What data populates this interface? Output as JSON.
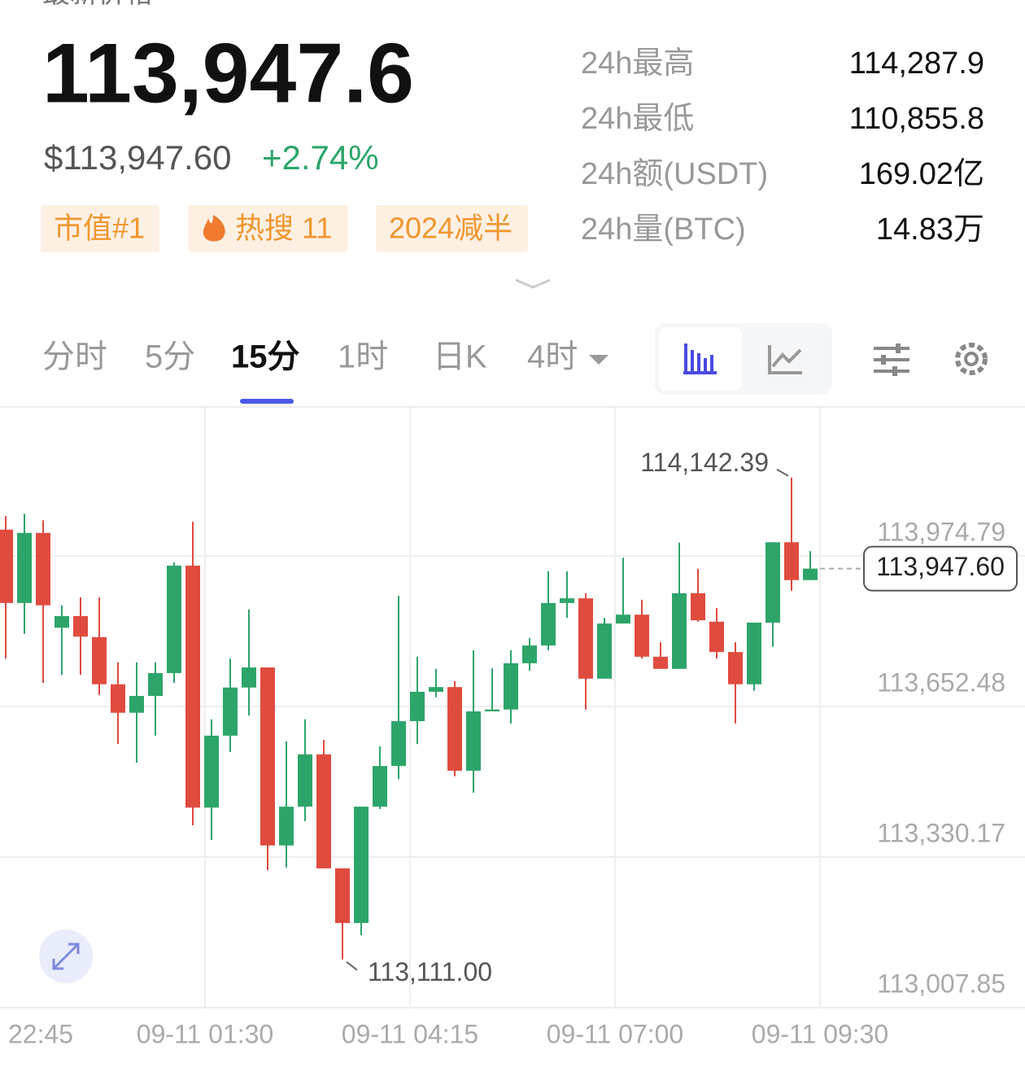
{
  "header": {
    "label": "最新价格",
    "price": "113,947.6",
    "usd_price": "$113,947.60",
    "change": "+2.74%",
    "tags": [
      "市值#1",
      "热搜 11",
      "2024减半"
    ],
    "stats": [
      [
        "24h最高",
        "114,287.9"
      ],
      [
        "24h最低",
        "110,855.8"
      ],
      [
        "24h额(USDT)",
        "169.02亿"
      ],
      [
        "24h量(BTC)",
        "14.83万"
      ]
    ]
  },
  "tabs": {
    "items": [
      "分时",
      "5分",
      "15分",
      "1时",
      "日K",
      "4时"
    ],
    "active": "15分"
  },
  "chart_data": {
    "type": "candlestick",
    "up_color": "#2da56a",
    "down_color": "#e04b3f",
    "xtick_labels": [
      "22:45",
      "09-11 01:30",
      "09-11 04:15",
      "09-11 07:00",
      "09-11 09:30"
    ],
    "ylim": [
      113007.85,
      114293.6
    ],
    "yticks": [
      {
        "value": 113007.85,
        "label": "113,007.85"
      },
      {
        "value": 113330.17,
        "label": "113,330.17"
      },
      {
        "value": 113652.48,
        "label": "113,652.48"
      },
      {
        "value": 113974.79,
        "label": "113,974.79"
      }
    ],
    "grid": true,
    "open": [
      114031,
      113874,
      114024,
      113821,
      113846,
      113801,
      113700,
      113639,
      113675,
      113724,
      113954,
      113436,
      113590,
      113693,
      113736,
      113355,
      113438,
      113550,
      113306,
      113189,
      113438,
      113525,
      113621,
      113684,
      113694,
      113515,
      113642,
      113646,
      113745,
      113783,
      113874,
      113884,
      113712,
      113830,
      113849,
      113759,
      113733,
      113895,
      113834,
      113769,
      113700,
      113832,
      114004,
      113923
    ],
    "high": [
      114060,
      114065,
      114051,
      113869,
      113886,
      113886,
      113747,
      113747,
      113747,
      113961,
      114048,
      113625,
      113755,
      113860,
      113736,
      113578,
      113625,
      113581,
      113306,
      113438,
      113567,
      113889,
      113759,
      113733,
      113707,
      113773,
      113734,
      113773,
      113799,
      113942,
      113942,
      113895,
      113842,
      113971,
      113881,
      113790,
      114003,
      113947,
      113863,
      113790,
      113832,
      114004,
      114142.39,
      113985
    ],
    "low": [
      113755,
      113808,
      113703,
      113720,
      113720,
      113677,
      113572,
      113532,
      113590,
      113703,
      113398,
      113367,
      113555,
      113633,
      113302,
      113308,
      113407,
      113306,
      113111,
      113163,
      113433,
      113497,
      113572,
      113672,
      113503,
      113468,
      113642,
      113616,
      113729,
      113773,
      113842,
      113646,
      113712,
      113830,
      113755,
      113733,
      113733,
      113834,
      113755,
      113616,
      113686,
      113780,
      113900,
      113923
    ],
    "close": [
      113874,
      114024,
      113869,
      113846,
      113802,
      113700,
      113639,
      113675,
      113724,
      113954,
      113436,
      113590,
      113693,
      113736,
      113355,
      113438,
      113550,
      113306,
      113189,
      113438,
      113525,
      113621,
      113684,
      113694,
      113515,
      113642,
      113646,
      113745,
      113783,
      113874,
      113884,
      113712,
      113830,
      113849,
      113759,
      113733,
      113895,
      113837,
      113769,
      113700,
      113832,
      114004,
      113923,
      113947.6
    ],
    "high_label": {
      "value": 114142.39,
      "label": "114,142.39"
    },
    "low_label": {
      "value": 113111,
      "label": "113,111.00"
    },
    "last_price": {
      "value": 113947.6,
      "label": "113,947.60"
    }
  }
}
